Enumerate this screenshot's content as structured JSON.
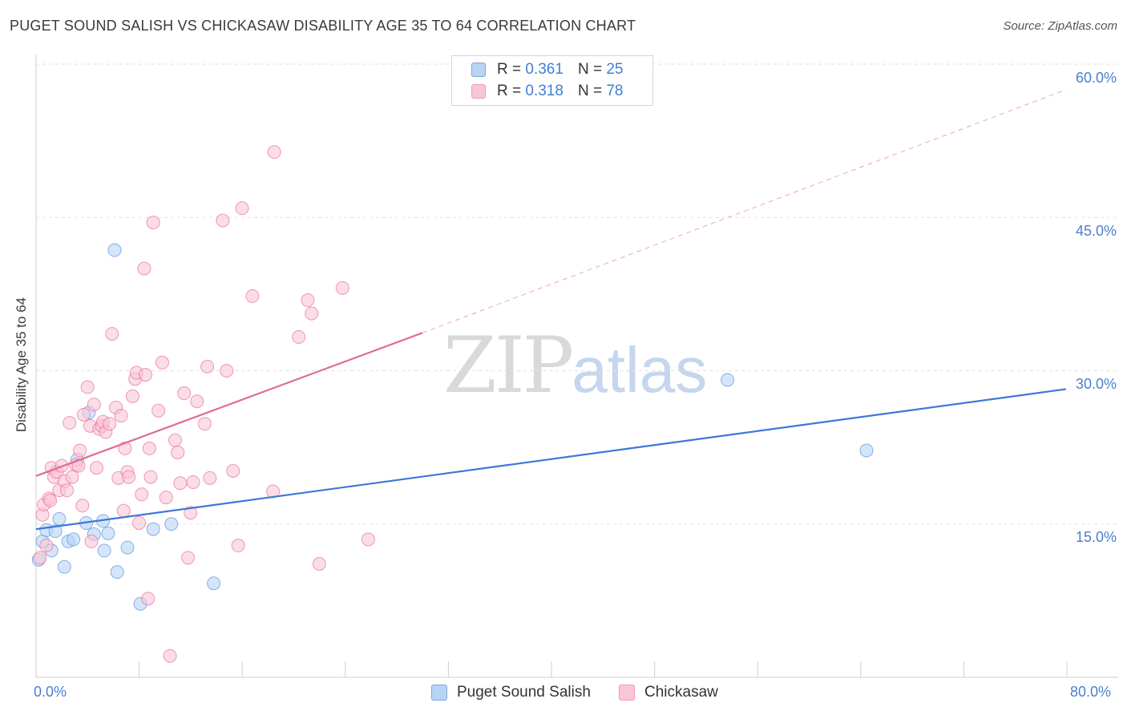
{
  "title": "PUGET SOUND SALISH VS CHICKASAW DISABILITY AGE 35 TO 64 CORRELATION CHART",
  "source": "Source: ZipAtlas.com",
  "watermark": {
    "zip": "ZIP",
    "atlas": "atlas"
  },
  "legend": {
    "rows": [
      {
        "r_label": "R = ",
        "r_value": "0.361",
        "n_label": "N = ",
        "n_value": "25",
        "fill": "#b8d4f5",
        "stroke": "#7aa6de"
      },
      {
        "r_label": "R = ",
        "r_value": "0.318",
        "n_label": "N = ",
        "n_value": "78",
        "fill": "#f9c6d6",
        "stroke": "#ee9ab4"
      }
    ]
  },
  "bottom_legend": [
    {
      "label": "Puget Sound Salish",
      "fill": "#b8d4f5",
      "stroke": "#7aa6de"
    },
    {
      "label": "Chickasaw",
      "fill": "#f9c6d6",
      "stroke": "#ee9ab4"
    }
  ],
  "chart_data": {
    "type": "scatter",
    "title": "PUGET SOUND SALISH VS CHICKASAW DISABILITY AGE 35 TO 64 CORRELATION CHART",
    "xlabel": "",
    "ylabel": "Disability Age 35 to 64",
    "xlim": [
      0,
      80
    ],
    "ylim": [
      0,
      60
    ],
    "x_tick_labels": [
      "0.0%",
      "80.0%"
    ],
    "y_ticks": [
      15,
      30,
      45,
      60
    ],
    "y_tick_labels": [
      "15.0%",
      "30.0%",
      "45.0%",
      "60.0%"
    ],
    "grid": true,
    "legend_position": "top-center",
    "series": [
      {
        "name": "Puget Sound Salish",
        "color": "#5b93dd",
        "fill": "#b8d4f5",
        "trend": {
          "x": [
            0,
            80
          ],
          "y": [
            14.5,
            28.2
          ],
          "dashed_extension": false,
          "line_color": "#3c78d8"
        },
        "points": [
          [
            0.2,
            11.5
          ],
          [
            0.5,
            13.3
          ],
          [
            0.8,
            14.4
          ],
          [
            1.2,
            12.4
          ],
          [
            1.5,
            14.3
          ],
          [
            1.8,
            15.5
          ],
          [
            2.2,
            10.8
          ],
          [
            2.5,
            13.3
          ],
          [
            2.9,
            13.5
          ],
          [
            3.2,
            21.3
          ],
          [
            3.9,
            15.1
          ],
          [
            4.1,
            25.9
          ],
          [
            4.5,
            14.0
          ],
          [
            5.2,
            15.3
          ],
          [
            5.3,
            12.4
          ],
          [
            5.6,
            14.1
          ],
          [
            6.1,
            41.8
          ],
          [
            6.3,
            10.3
          ],
          [
            7.1,
            12.7
          ],
          [
            8.1,
            7.2
          ],
          [
            9.1,
            14.5
          ],
          [
            10.5,
            15.0
          ],
          [
            13.8,
            9.2
          ],
          [
            53.7,
            29.1
          ],
          [
            64.5,
            22.2
          ]
        ]
      },
      {
        "name": "Chickasaw",
        "color": "#e96f98",
        "fill": "#f9c6d6",
        "trend": {
          "x": [
            0,
            30
          ],
          "y": [
            19.7,
            33.7
          ],
          "dashed_to": {
            "x": 80,
            "y": 57.5
          },
          "line_color": "#e06b93"
        },
        "points": [
          [
            0.3,
            11.7
          ],
          [
            0.5,
            15.9
          ],
          [
            0.6,
            16.9
          ],
          [
            0.8,
            12.9
          ],
          [
            1.0,
            17.5
          ],
          [
            1.1,
            17.3
          ],
          [
            1.2,
            20.5
          ],
          [
            1.4,
            19.6
          ],
          [
            1.6,
            20.1
          ],
          [
            1.8,
            18.3
          ],
          [
            2.0,
            20.7
          ],
          [
            2.2,
            19.2
          ],
          [
            2.4,
            18.3
          ],
          [
            2.6,
            24.9
          ],
          [
            2.8,
            19.6
          ],
          [
            3.1,
            20.8
          ],
          [
            3.3,
            20.7
          ],
          [
            3.4,
            22.2
          ],
          [
            3.6,
            16.8
          ],
          [
            3.7,
            25.7
          ],
          [
            4.0,
            28.4
          ],
          [
            4.2,
            24.6
          ],
          [
            4.3,
            13.3
          ],
          [
            4.5,
            26.7
          ],
          [
            4.7,
            20.5
          ],
          [
            4.9,
            24.3
          ],
          [
            5.1,
            24.6
          ],
          [
            5.2,
            25.0
          ],
          [
            5.4,
            24.0
          ],
          [
            5.7,
            24.8
          ],
          [
            5.9,
            33.6
          ],
          [
            6.2,
            26.4
          ],
          [
            6.4,
            19.5
          ],
          [
            6.6,
            25.6
          ],
          [
            6.8,
            16.3
          ],
          [
            6.9,
            22.4
          ],
          [
            7.1,
            20.1
          ],
          [
            7.2,
            19.6
          ],
          [
            7.5,
            27.5
          ],
          [
            7.7,
            29.2
          ],
          [
            7.8,
            29.8
          ],
          [
            8.0,
            15.1
          ],
          [
            8.2,
            17.9
          ],
          [
            8.4,
            40.0
          ],
          [
            8.5,
            29.6
          ],
          [
            8.8,
            22.4
          ],
          [
            8.9,
            19.6
          ],
          [
            9.1,
            44.5
          ],
          [
            9.5,
            26.1
          ],
          [
            9.8,
            30.8
          ],
          [
            10.1,
            17.6
          ],
          [
            10.4,
            2.1
          ],
          [
            10.8,
            23.2
          ],
          [
            11.0,
            22.0
          ],
          [
            11.2,
            19.0
          ],
          [
            11.5,
            27.8
          ],
          [
            11.8,
            11.7
          ],
          [
            12.0,
            16.1
          ],
          [
            12.2,
            19.1
          ],
          [
            12.5,
            27.0
          ],
          [
            13.1,
            24.8
          ],
          [
            13.3,
            30.4
          ],
          [
            13.5,
            19.5
          ],
          [
            14.5,
            44.7
          ],
          [
            14.8,
            30.0
          ],
          [
            15.3,
            20.2
          ],
          [
            15.7,
            12.9
          ],
          [
            16.0,
            45.9
          ],
          [
            16.8,
            37.3
          ],
          [
            18.4,
            18.2
          ],
          [
            18.5,
            51.4
          ],
          [
            20.4,
            33.3
          ],
          [
            21.1,
            36.9
          ],
          [
            21.4,
            35.6
          ],
          [
            22.0,
            11.1
          ],
          [
            23.8,
            38.1
          ],
          [
            25.8,
            13.5
          ],
          [
            8.7,
            7.7
          ]
        ]
      }
    ]
  }
}
